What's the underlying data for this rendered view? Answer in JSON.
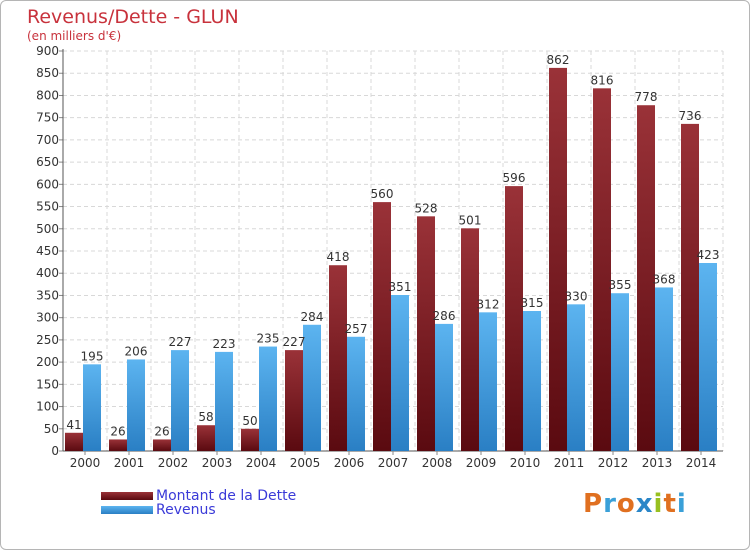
{
  "chart_data": {
    "type": "bar",
    "title": "Revenus/Dette - GLUN",
    "subtitle": "(en milliers d'€)",
    "xlabel": "",
    "ylabel": "",
    "ylim": [
      0,
      900
    ],
    "y_ticks": [
      "0",
      "50",
      "100",
      "150",
      "200",
      "250",
      "300",
      "350",
      "400",
      "450",
      "500",
      "550",
      "600",
      "650",
      "700",
      "750",
      "800",
      "850",
      "900"
    ],
    "grid": true,
    "categories": [
      "2000",
      "2001",
      "2002",
      "2003",
      "2004",
      "2005",
      "2006",
      "2007",
      "2008",
      "2009",
      "2010",
      "2011",
      "2012",
      "2013",
      "2014"
    ],
    "series": [
      {
        "name": "Montant de la Dette",
        "color": "#7a1a1f",
        "values": [
          41,
          26,
          26,
          58,
          50,
          227,
          418,
          560,
          528,
          501,
          596,
          862,
          816,
          778,
          736
        ]
      },
      {
        "name": "Revenus",
        "color": "#4aa6e8",
        "values": [
          195,
          206,
          227,
          223,
          235,
          284,
          257,
          351,
          286,
          312,
          315,
          330,
          355,
          368,
          423
        ]
      }
    ],
    "legend_position": "bottom-left"
  },
  "logo": {
    "letters": [
      "P",
      "r",
      "o",
      "x",
      "i",
      "t",
      "i"
    ],
    "colors": [
      "#e07020",
      "#3aa0d8",
      "#e07020",
      "#2a86c8",
      "#98c020",
      "#e07020",
      "#3aa0d8"
    ]
  }
}
